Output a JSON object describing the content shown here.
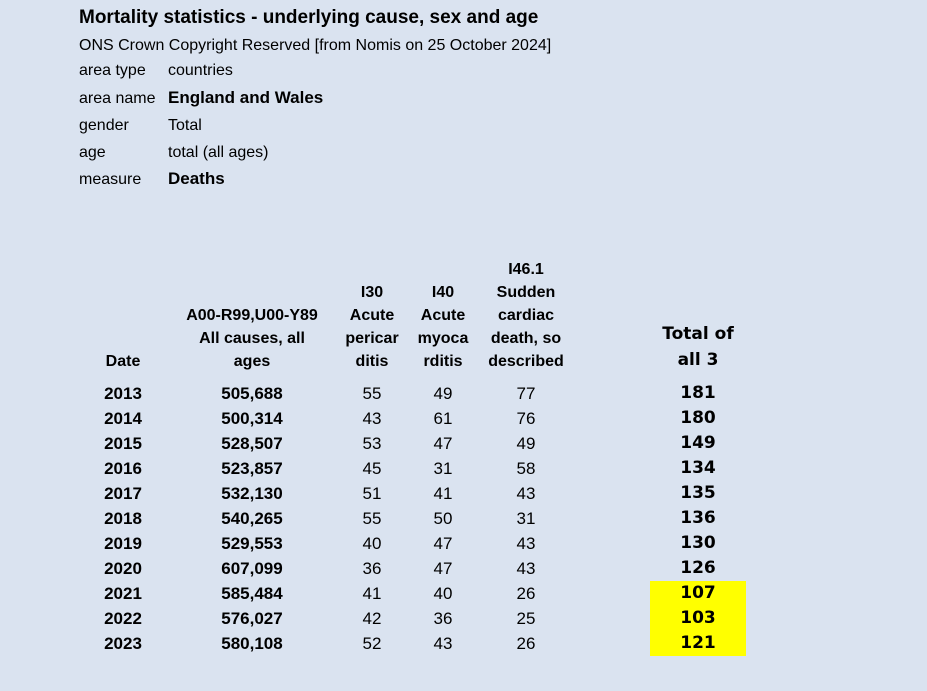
{
  "colors": {
    "background": "#dae3f0",
    "highlight": "#ffff00",
    "text": "#000000"
  },
  "header": {
    "title": "Mortality statistics - underlying cause, sex and age",
    "subtitle": "ONS Crown Copyright Reserved [from Nomis on 25 October 2024]"
  },
  "meta": {
    "rows": [
      {
        "label": "area type",
        "value": "countries",
        "bold_value": false
      },
      {
        "label": "area name",
        "value": "England and Wales",
        "bold_value": true
      },
      {
        "label": "gender",
        "value": "Total",
        "bold_value": false
      },
      {
        "label": "age",
        "value": "total (all ages)",
        "bold_value": false
      },
      {
        "label": "measure",
        "value": "Deaths",
        "bold_value": true
      }
    ]
  },
  "table": {
    "column_order": [
      "date",
      "all_causes",
      "i30",
      "i40",
      "i461",
      "spacer",
      "total"
    ],
    "column_headers": {
      "date": {
        "lines": [
          "Date"
        ]
      },
      "all_causes": {
        "lines": [
          "A00-R99,U00-Y89",
          "All causes, all",
          "ages"
        ]
      },
      "i30": {
        "lines": [
          "I30",
          "Acute",
          "pericar",
          "ditis"
        ]
      },
      "i40": {
        "lines": [
          "I40",
          "Acute",
          "myoca",
          "rditis"
        ]
      },
      "i461": {
        "lines": [
          "I46.1",
          "Sudden",
          "cardiac",
          "death, so",
          "described"
        ]
      },
      "spacer": {
        "lines": []
      },
      "total": {
        "lines": [
          "Total of",
          "all 3"
        ]
      }
    },
    "rows": [
      {
        "date": "2013",
        "all_causes": "505,688",
        "i30": "55",
        "i40": "49",
        "i461": "77",
        "total": "181",
        "total_highlighted": false
      },
      {
        "date": "2014",
        "all_causes": "500,314",
        "i30": "43",
        "i40": "61",
        "i461": "76",
        "total": "180",
        "total_highlighted": false
      },
      {
        "date": "2015",
        "all_causes": "528,507",
        "i30": "53",
        "i40": "47",
        "i461": "49",
        "total": "149",
        "total_highlighted": false
      },
      {
        "date": "2016",
        "all_causes": "523,857",
        "i30": "45",
        "i40": "31",
        "i461": "58",
        "total": "134",
        "total_highlighted": false
      },
      {
        "date": "2017",
        "all_causes": "532,130",
        "i30": "51",
        "i40": "41",
        "i461": "43",
        "total": "135",
        "total_highlighted": false
      },
      {
        "date": "2018",
        "all_causes": "540,265",
        "i30": "55",
        "i40": "50",
        "i461": "31",
        "total": "136",
        "total_highlighted": false
      },
      {
        "date": "2019",
        "all_causes": "529,553",
        "i30": "40",
        "i40": "47",
        "i461": "43",
        "total": "130",
        "total_highlighted": false
      },
      {
        "date": "2020",
        "all_causes": "607,099",
        "i30": "36",
        "i40": "47",
        "i461": "43",
        "total": "126",
        "total_highlighted": false
      },
      {
        "date": "2021",
        "all_causes": "585,484",
        "i30": "41",
        "i40": "40",
        "i461": "26",
        "total": "107",
        "total_highlighted": true
      },
      {
        "date": "2022",
        "all_causes": "576,027",
        "i30": "42",
        "i40": "36",
        "i461": "25",
        "total": "103",
        "total_highlighted": true
      },
      {
        "date": "2023",
        "all_causes": "580,108",
        "i30": "52",
        "i40": "43",
        "i461": "26",
        "total": "121",
        "total_highlighted": true
      }
    ]
  }
}
